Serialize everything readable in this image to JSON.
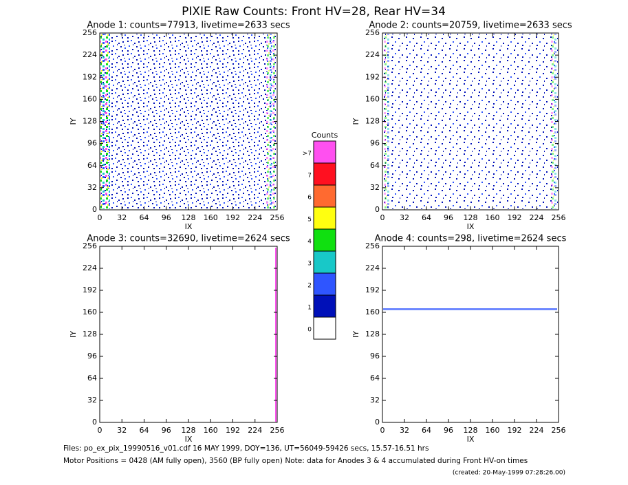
{
  "title": "PIXIE Raw Counts:  Front HV=28, Rear HV=34",
  "chart_data": [
    {
      "type": "heatmap",
      "title": "Anode 1: counts=77913, livetime=2633 secs",
      "x_label": "IX",
      "y_label": "IY",
      "xlim": [
        0,
        256
      ],
      "ylim": [
        0,
        256
      ],
      "xticks": [
        0,
        32,
        64,
        96,
        128,
        160,
        192,
        224,
        256
      ],
      "yticks": [
        0,
        32,
        64,
        96,
        128,
        160,
        192,
        224,
        256
      ]
    },
    {
      "type": "heatmap",
      "title": "Anode 2: counts=20759, livetime=2633 secs",
      "x_label": "IX",
      "y_label": "IY",
      "xlim": [
        0,
        256
      ],
      "ylim": [
        0,
        256
      ],
      "xticks": [
        0,
        32,
        64,
        96,
        128,
        160,
        192,
        224,
        256
      ],
      "yticks": [
        0,
        32,
        64,
        96,
        128,
        160,
        192,
        224,
        256
      ]
    },
    {
      "type": "heatmap",
      "title": "Anode 3: counts=32690, livetime=2624 secs",
      "x_label": "IX",
      "y_label": "IY",
      "xlim": [
        0,
        256
      ],
      "ylim": [
        0,
        256
      ],
      "xticks": [
        0,
        32,
        64,
        96,
        128,
        160,
        192,
        224,
        256
      ],
      "yticks": [
        0,
        32,
        64,
        96,
        128,
        160,
        192,
        224,
        256
      ]
    },
    {
      "type": "heatmap",
      "title": "Anode 4: counts=298, livetime=2624 secs",
      "x_label": "IX",
      "y_label": "IY",
      "xlim": [
        0,
        256
      ],
      "ylim": [
        0,
        256
      ],
      "xticks": [
        0,
        32,
        64,
        96,
        128,
        160,
        192,
        224,
        256
      ],
      "yticks": [
        0,
        32,
        64,
        96,
        128,
        160,
        192,
        224,
        256
      ]
    }
  ],
  "colorbar": {
    "title": "Counts",
    "labels": [
      "0",
      "1",
      "2",
      "3",
      "4",
      "5",
      "6",
      "7",
      ">7"
    ],
    "colors": [
      "#ffffff",
      "#0010b8",
      "#2f55ff",
      "#18c8c8",
      "#10e010",
      "#ffff10",
      "#ff6a30",
      "#ff1020",
      "#ff50f0"
    ]
  },
  "footer": [
    "Files: po_ex_pix_19990516_v01.cdf    16 MAY 1999, DOY=136, UT=56049-59426 secs, 15.57-16.51 hrs",
    "Motor Positions = 0428 (AM fully open), 3560 (BP fully open)    Note: data for Anodes 3 & 4 accumulated during Front HV-on times",
    "(created: 20-May-1999 07:28:26.00)"
  ]
}
